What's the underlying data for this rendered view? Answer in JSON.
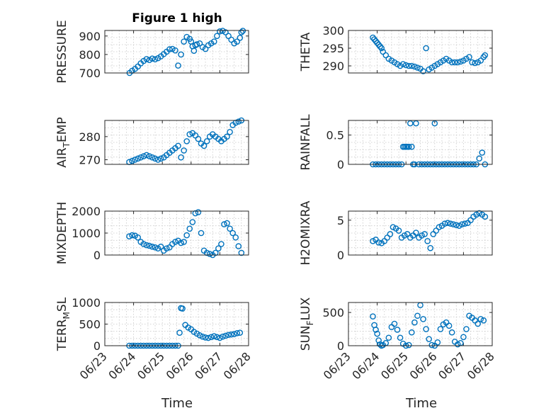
{
  "figure": {
    "title": "Figure 1 high"
  },
  "colors": {
    "marker": "#0072bd",
    "axis": "#262626",
    "grid": "#c8c8c8"
  },
  "chart_data": [
    {
      "type": "scatter",
      "id": "pressure",
      "ylabel": "PRESSURE",
      "ylim": [
        700,
        930
      ],
      "yticks": [
        "700",
        "800",
        "900"
      ],
      "ytick_values": [
        700,
        800,
        900
      ],
      "x": [
        0.86,
        0.95,
        1.05,
        1.15,
        1.25,
        1.35,
        1.45,
        1.55,
        1.65,
        1.75,
        1.85,
        1.95,
        2.05,
        2.15,
        2.25,
        2.35,
        2.45,
        2.55,
        2.65,
        2.75,
        2.85,
        2.95,
        3.0,
        3.05,
        3.1,
        3.15,
        3.2,
        3.3,
        3.4,
        3.5,
        3.6,
        3.7,
        3.8,
        3.9,
        4.0,
        4.1,
        4.2,
        4.3,
        4.4,
        4.5,
        4.6,
        4.7,
        4.75,
        4.8
      ],
      "y": [
        700,
        712,
        722,
        735,
        752,
        765,
        775,
        770,
        778,
        774,
        780,
        790,
        802,
        815,
        828,
        830,
        822,
        740,
        800,
        870,
        895,
        885,
        870,
        845,
        820,
        850,
        855,
        860,
        840,
        830,
        850,
        860,
        870,
        900,
        925,
        928,
        920,
        900,
        880,
        860,
        870,
        890,
        920,
        928
      ]
    },
    {
      "type": "scatter",
      "id": "theta",
      "ylabel": "THETA",
      "ylim": [
        288,
        300
      ],
      "yticks": [
        "290",
        "295",
        "300"
      ],
      "ytick_values": [
        290,
        295,
        300
      ],
      "x": [
        0.85,
        0.9,
        0.95,
        1.0,
        1.05,
        1.1,
        1.15,
        1.2,
        1.3,
        1.4,
        1.5,
        1.6,
        1.7,
        1.8,
        1.9,
        2.0,
        2.1,
        2.2,
        2.3,
        2.4,
        2.5,
        2.6,
        2.7,
        2.8,
        2.9,
        3.0,
        3.1,
        3.2,
        3.3,
        3.4,
        3.5,
        3.6,
        3.7,
        3.8,
        3.9,
        4.0,
        4.1,
        4.2,
        4.3,
        4.4,
        4.5,
        4.6,
        4.7,
        4.75
      ],
      "y": [
        298,
        297.5,
        297,
        296.5,
        296,
        295.5,
        295,
        294,
        293,
        292,
        291.5,
        291,
        290.5,
        290,
        290.5,
        290.2,
        290,
        290,
        289.8,
        289.5,
        289.2,
        288.5,
        295,
        289,
        289.5,
        290,
        290.5,
        291,
        291.5,
        292,
        291.5,
        291,
        291,
        291,
        291.2,
        291.5,
        292,
        292.5,
        291,
        290.8,
        291,
        291.5,
        292.5,
        293
      ]
    },
    {
      "type": "scatter",
      "id": "air_temp",
      "ylabel": "AIR",
      "ylabel_sub": "T",
      "ylabel_tail": "EMP",
      "ylim": [
        268,
        287
      ],
      "yticks": [
        "270",
        "280"
      ],
      "ytick_values": [
        270,
        280
      ],
      "x": [
        0.85,
        0.95,
        1.05,
        1.15,
        1.25,
        1.35,
        1.45,
        1.55,
        1.65,
        1.75,
        1.85,
        1.95,
        2.05,
        2.15,
        2.25,
        2.35,
        2.45,
        2.55,
        2.65,
        2.75,
        2.85,
        2.95,
        3.05,
        3.15,
        3.25,
        3.35,
        3.45,
        3.55,
        3.65,
        3.75,
        3.85,
        3.95,
        4.05,
        4.15,
        4.25,
        4.35,
        4.45,
        4.55,
        4.65,
        4.75
      ],
      "y": [
        269,
        269.5,
        270,
        270.5,
        271,
        271.5,
        272,
        271.5,
        271,
        270.5,
        270,
        270.5,
        271,
        272,
        273,
        274,
        275,
        276,
        271,
        274,
        278,
        281,
        281.5,
        280.5,
        279,
        277,
        276,
        278,
        280,
        281,
        280,
        279,
        278,
        279,
        280,
        282,
        285,
        286,
        286.5,
        287
      ]
    },
    {
      "type": "scatter",
      "id": "rainfall",
      "ylabel": "RAINFALL",
      "ylim": [
        0,
        0.75
      ],
      "yticks": [
        "0",
        "0.5"
      ],
      "ytick_values": [
        0,
        0.5
      ],
      "x": [
        0.85,
        0.95,
        1.05,
        1.15,
        1.25,
        1.35,
        1.45,
        1.55,
        1.65,
        1.75,
        1.85,
        1.9,
        1.95,
        2.0,
        2.05,
        2.1,
        2.15,
        2.2,
        2.25,
        2.3,
        2.35,
        2.45,
        2.55,
        2.65,
        2.75,
        2.85,
        2.95,
        3.0,
        3.05,
        3.15,
        3.25,
        3.35,
        3.45,
        3.55,
        3.65,
        3.75,
        3.85,
        3.95,
        4.05,
        4.15,
        4.25,
        4.35,
        4.45,
        4.55,
        4.65,
        4.75
      ],
      "y": [
        0,
        0,
        0,
        0,
        0,
        0,
        0,
        0,
        0,
        0,
        0,
        0.3,
        0.3,
        0.3,
        0.3,
        0.3,
        0.7,
        0.3,
        0,
        0,
        0.7,
        0,
        0,
        0,
        0,
        0,
        0,
        0.7,
        0,
        0,
        0,
        0,
        0,
        0,
        0,
        0,
        0,
        0,
        0,
        0,
        0,
        0,
        0,
        0.1,
        0.2,
        0
      ]
    },
    {
      "type": "scatter",
      "id": "mixdepth",
      "ylabel": "MIXDEPTH",
      "ylim": [
        0,
        2000
      ],
      "yticks": [
        "0",
        "1000",
        "2000"
      ],
      "ytick_values": [
        0,
        1000,
        2000
      ],
      "x": [
        0.85,
        0.95,
        1.05,
        1.15,
        1.25,
        1.35,
        1.45,
        1.55,
        1.65,
        1.75,
        1.85,
        1.95,
        2.05,
        2.15,
        2.25,
        2.35,
        2.45,
        2.55,
        2.65,
        2.75,
        2.85,
        2.95,
        3.05,
        3.15,
        3.25,
        3.35,
        3.45,
        3.55,
        3.65,
        3.75,
        3.85,
        3.95,
        4.05,
        4.15,
        4.25,
        4.35,
        4.45,
        4.55,
        4.65,
        4.75
      ],
      "y": [
        850,
        900,
        880,
        800,
        600,
        500,
        450,
        420,
        380,
        350,
        300,
        380,
        200,
        300,
        350,
        500,
        600,
        650,
        550,
        600,
        900,
        1200,
        1500,
        1900,
        1950,
        1000,
        200,
        100,
        50,
        0,
        100,
        300,
        500,
        1400,
        1450,
        1200,
        1000,
        800,
        400,
        100
      ]
    },
    {
      "type": "scatter",
      "id": "h2omixra",
      "ylabel": "H2OMIXRA",
      "ylim": [
        0,
        6.3
      ],
      "yticks": [
        "0",
        "5"
      ],
      "ytick_values": [
        0,
        5
      ],
      "x": [
        0.85,
        0.95,
        1.05,
        1.15,
        1.25,
        1.35,
        1.45,
        1.55,
        1.65,
        1.75,
        1.85,
        1.95,
        2.05,
        2.15,
        2.25,
        2.35,
        2.45,
        2.55,
        2.65,
        2.75,
        2.85,
        2.95,
        3.05,
        3.15,
        3.25,
        3.35,
        3.45,
        3.55,
        3.65,
        3.75,
        3.85,
        3.95,
        4.05,
        4.15,
        4.25,
        4.35,
        4.45,
        4.55,
        4.65,
        4.75
      ],
      "y": [
        2,
        2.2,
        1.8,
        1.7,
        2,
        2.5,
        3,
        4,
        3.8,
        3.5,
        2.5,
        2.8,
        3,
        2.5,
        2.8,
        3.2,
        2.5,
        2.8,
        3,
        2,
        1,
        3,
        3.5,
        4,
        4.2,
        4.5,
        4.6,
        4.5,
        4.4,
        4.3,
        4.2,
        4.4,
        4.5,
        4.6,
        5,
        5.5,
        5.8,
        6,
        5.8,
        5.5
      ]
    },
    {
      "type": "scatter",
      "id": "terr_msl",
      "ylabel": "TERR",
      "ylabel_sub": "M",
      "ylabel_tail": "SL",
      "ylim": [
        0,
        1000
      ],
      "yticks": [
        "0",
        "500",
        "1000"
      ],
      "ytick_values": [
        0,
        500,
        1000
      ],
      "x": [
        0.85,
        0.95,
        1.05,
        1.15,
        1.25,
        1.35,
        1.45,
        1.55,
        1.65,
        1.75,
        1.85,
        1.95,
        2.05,
        2.15,
        2.25,
        2.35,
        2.45,
        2.55,
        2.6,
        2.65,
        2.7,
        2.8,
        2.9,
        3.0,
        3.1,
        3.2,
        3.3,
        3.4,
        3.5,
        3.6,
        3.7,
        3.8,
        3.9,
        4.0,
        4.1,
        4.2,
        4.3,
        4.4,
        4.5,
        4.6,
        4.7
      ],
      "y": [
        0,
        0,
        0,
        0,
        0,
        0,
        0,
        0,
        0,
        0,
        0,
        0,
        0,
        0,
        0,
        0,
        0,
        0,
        300,
        870,
        860,
        480,
        420,
        380,
        320,
        280,
        240,
        210,
        190,
        180,
        200,
        220,
        200,
        180,
        210,
        230,
        250,
        260,
        270,
        290,
        300
      ]
    },
    {
      "type": "scatter",
      "id": "sun_flux",
      "ylabel": "SUN",
      "ylabel_sub": "F",
      "ylabel_tail": "LUX",
      "ylim": [
        0,
        650
      ],
      "yticks": [
        "0",
        "500"
      ],
      "ytick_values": [
        0,
        500
      ],
      "x": [
        0.85,
        0.9,
        0.95,
        1.0,
        1.05,
        1.1,
        1.15,
        1.2,
        1.3,
        1.4,
        1.5,
        1.6,
        1.7,
        1.8,
        1.9,
        2.0,
        2.1,
        2.2,
        2.3,
        2.4,
        2.5,
        2.6,
        2.7,
        2.8,
        2.9,
        3.0,
        3.1,
        3.2,
        3.3,
        3.4,
        3.5,
        3.6,
        3.7,
        3.8,
        3.9,
        4.0,
        4.1,
        4.2,
        4.3,
        4.4,
        4.5,
        4.6,
        4.7
      ],
      "y": [
        440,
        310,
        240,
        180,
        80,
        20,
        0,
        10,
        40,
        120,
        280,
        330,
        240,
        120,
        30,
        0,
        10,
        200,
        350,
        450,
        610,
        400,
        250,
        100,
        10,
        0,
        50,
        250,
        320,
        350,
        300,
        200,
        60,
        20,
        40,
        130,
        250,
        450,
        420,
        380,
        330,
        400,
        380
      ]
    }
  ],
  "x_axis": {
    "label": "Time",
    "xlim": [
      0,
      5
    ],
    "tick_values": [
      0,
      1,
      2,
      3,
      4,
      5
    ],
    "ticks": [
      "06/23",
      "06/24",
      "06/25",
      "06/26",
      "06/27",
      "06/28"
    ]
  }
}
